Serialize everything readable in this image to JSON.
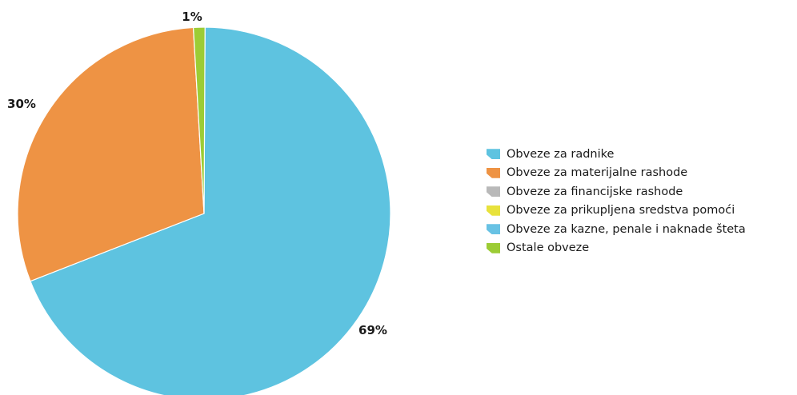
{
  "chart_data": {
    "type": "pie",
    "title": "",
    "slices": [
      {
        "name": "Obveze za radnike",
        "value": 69,
        "label": "69%",
        "color": "#5ec3e0"
      },
      {
        "name": "Obveze za materijalne rashode",
        "value": 30,
        "label": "30%",
        "color": "#ee9344"
      },
      {
        "name": "Obveze za financijske rashode",
        "value": 0,
        "label": "",
        "color": "#b9b9b9"
      },
      {
        "name": "Obveze za prikupljena sredstva pomoći",
        "value": 0,
        "label": "",
        "color": "#e8e23c"
      },
      {
        "name": "Obveze za kazne, penale i naknade šteta",
        "value": 0,
        "label": "",
        "color": "#68c2e4"
      },
      {
        "name": "Ostale obveze",
        "value": 1,
        "label": "1%",
        "color": "#9ccc35"
      }
    ],
    "legend_position": "right"
  }
}
